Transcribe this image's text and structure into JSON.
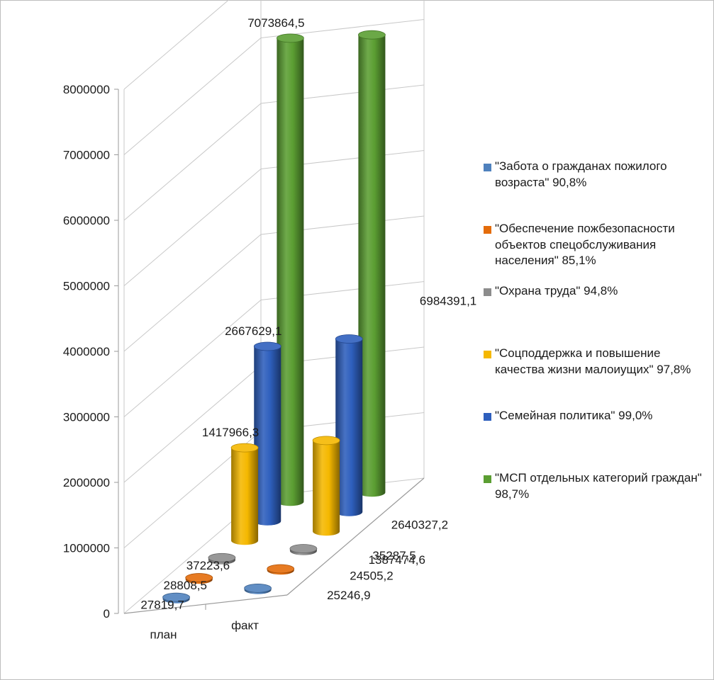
{
  "chart_data": {
    "type": "bar",
    "subtype": "3d-cylinder",
    "title": "",
    "xlabel": "",
    "ylabel": "",
    "categories": [
      "план",
      "факт"
    ],
    "ylim": [
      0,
      8000000
    ],
    "yticks": [
      "0",
      "1000000",
      "2000000",
      "3000000",
      "4000000",
      "5000000",
      "6000000",
      "7000000",
      "8000000"
    ],
    "grid": true,
    "legend_position": "right",
    "series": [
      {
        "name": "\"Забота о гражданах пожилого возраста\" 90,8%",
        "color": "#4f81bd",
        "values": [
          27819.7,
          25246.9
        ],
        "labels": [
          "27819,7",
          "25246,9"
        ]
      },
      {
        "name": "\"Обеспечение пожбезопасности объектов спецобслуживания населения\" 85,1%",
        "color": "#e46c0a",
        "values": [
          28808.5,
          24505.2
        ],
        "labels": [
          "28808,5",
          "24505,2"
        ]
      },
      {
        "name": "\"Охрана труда\" 94,8%",
        "color": "#8c8c8c",
        "values": [
          37223.6,
          35287.5
        ],
        "labels": [
          "37223,6",
          "35287,5"
        ]
      },
      {
        "name": "\"Соцподдержка и повышение качества жизни малоиущих\" 97,8%",
        "color": "#f5b800",
        "values": [
          1417966.3,
          1387474.6
        ],
        "labels": [
          "1417966,3",
          "1387474,6"
        ]
      },
      {
        "name": "\"Семейная политика\" 99,0%",
        "color": "#2e5fbd",
        "values": [
          2667629.1,
          2640327.2
        ],
        "labels": [
          "2667629,1",
          "2640327,2"
        ]
      },
      {
        "name": "\"МСП отдельных категорий граждан\" 98,7%",
        "color": "#5b9e32",
        "values": [
          7073864.5,
          6984391.1
        ],
        "labels": [
          "7073864,5",
          "6984391,1"
        ]
      }
    ]
  }
}
